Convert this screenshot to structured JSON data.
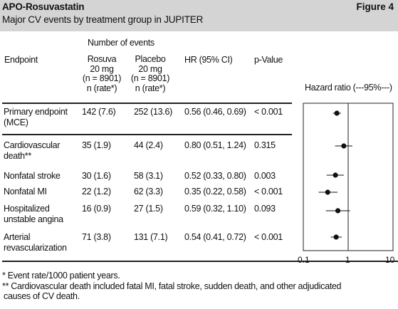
{
  "header": {
    "title": "APO-Rosuvastatin",
    "figure_label": "Figure 4",
    "subtitle": "Major CV events by treatment group in JUPITER"
  },
  "table": {
    "number_of_events_label": "Number of events",
    "columns": {
      "endpoint": "Endpoint",
      "rosuva": [
        "Rosuva",
        "20 mg",
        "(n = 8901)",
        "n (rate*)"
      ],
      "placebo": [
        "Placebo",
        "20 mg",
        "(n = 8901)",
        "n (rate*)"
      ],
      "hr": "HR (95% CI)",
      "p": "p-Value"
    },
    "forest_title": "Hazard ratio (---95%---)",
    "rows": [
      {
        "endpoint": [
          "Primary endpoint",
          "(MCE)"
        ],
        "rosuva": "142 (7.6)",
        "placebo": "252 (13.6)",
        "hr": "0.56 (0.46, 0.69)",
        "p": "< 0.001"
      },
      {
        "endpoint": [
          "Cardiovascular",
          "death**"
        ],
        "rosuva": "35 (1.9)",
        "placebo": "44 (2.4)",
        "hr": "0.80 (0.51, 1.24)",
        "p": "0.315"
      },
      {
        "endpoint": [
          "Nonfatal stroke"
        ],
        "rosuva": "30 (1.6)",
        "placebo": "58 (3.1)",
        "hr": "0.52 (0.33, 0.80)",
        "p": "0.003"
      },
      {
        "endpoint": [
          "Nonfatal MI"
        ],
        "rosuva": "22 (1.2)",
        "placebo": "62 (3.3)",
        "hr": "0.35 (0.22, 0.58)",
        "p": "< 0.001"
      },
      {
        "endpoint": [
          "Hospitalized",
          "unstable angina"
        ],
        "rosuva": "16 (0.9)",
        "placebo": "27 (1.5)",
        "hr": "0.59 (0.32, 1.10)",
        "p": "0.093"
      },
      {
        "endpoint": [
          "Arterial",
          "revascularization"
        ],
        "rosuva": "71 (3.8)",
        "placebo": "131 (7.1)",
        "hr": "0.54 (0.41, 0.72)",
        "p": "< 0.001"
      }
    ]
  },
  "footnotes": [
    "* Event rate/1000 patient years.",
    "** Cardiovascular death included fatal MI, fatal stroke, sudden death, and other adjudicated",
    "causes of CV death."
  ],
  "chart_data": {
    "type": "scatter",
    "title": "Hazard ratio (---95%---)",
    "xscale": "log",
    "xlim": [
      0.1,
      10
    ],
    "xticks": [
      "0.1",
      "1",
      "10"
    ],
    "reference_line": 1,
    "categories": [
      "Primary endpoint (MCE)",
      "Cardiovascular death**",
      "Nonfatal stroke",
      "Nonfatal MI",
      "Hospitalized unstable angina",
      "Arterial revascularization"
    ],
    "hr": [
      0.56,
      0.8,
      0.52,
      0.35,
      0.59,
      0.54
    ],
    "ci_low": [
      0.46,
      0.51,
      0.33,
      0.22,
      0.32,
      0.41
    ],
    "ci_high": [
      0.69,
      1.24,
      0.8,
      0.58,
      1.1,
      0.72
    ]
  }
}
